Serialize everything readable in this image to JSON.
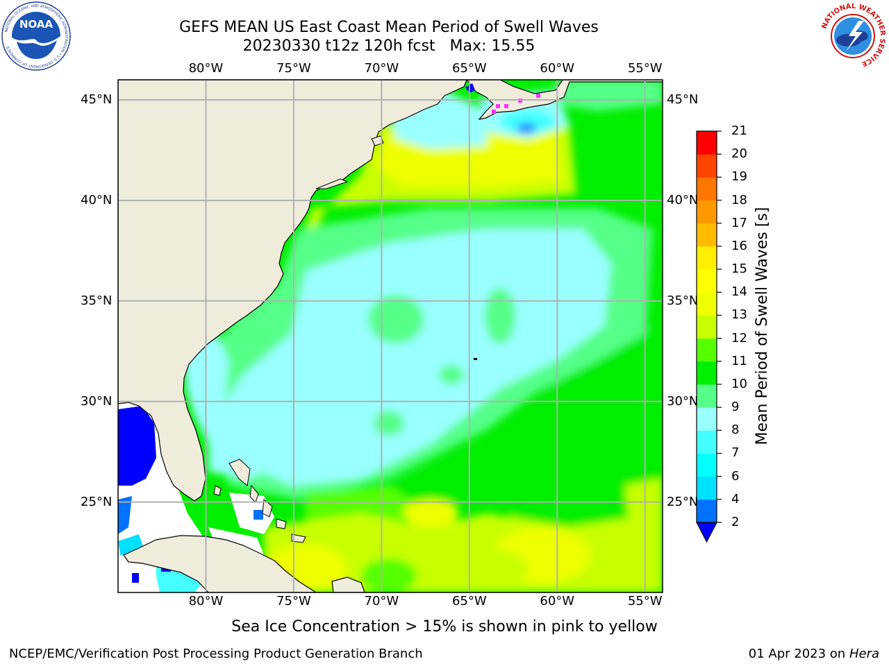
{
  "header": {
    "title_line1": "GEFS MEAN US East Coast Mean Period of Swell Waves",
    "title_line2": "20230330 t12z 120h fcst   Max: 15.55"
  },
  "logos": {
    "left": {
      "icon": "noaa-logo",
      "label": "NOAA",
      "ring_text": "NATIONAL OCEANIC AND ATMOSPHERIC ADMINISTRATION • U.S. DEPARTMENT OF COMMERCE"
    },
    "right": {
      "icon": "nws-logo",
      "ring_text": "NATIONAL WEATHER SERVICE"
    }
  },
  "footer": {
    "note": "Sea Ice Concentration > 15% is shown in pink to yellow",
    "credit_left": "NCEP/EMC/Verification Post Processing Product Generation Branch",
    "credit_right_date": "01 Apr 2023 on ",
    "credit_right_host": "Hera"
  },
  "colors": {
    "land": "#efecdc",
    "grid": "#b0b0b0",
    "undefined_water": "#ffffff",
    "sea_ice_sample": "#ff33ff"
  },
  "chart_data": {
    "type": "heatmap",
    "title": "GEFS MEAN US East Coast Mean Period of Swell Waves",
    "subtitle": "20230330 t12z 120h fcst   Max: 15.55",
    "variable": "Mean Period of Swell Waves [s]",
    "max_value": 15.55,
    "xlim": [
      -85,
      -54
    ],
    "ylim": [
      20.5,
      46
    ],
    "x_ticks": [
      -80,
      -75,
      -70,
      -65,
      -60,
      -55
    ],
    "x_tick_labels": [
      "80°W",
      "75°W",
      "70°W",
      "65°W",
      "60°W",
      "55°W"
    ],
    "y_ticks": [
      25,
      30,
      35,
      40,
      45
    ],
    "y_tick_labels": [
      "25°N",
      "30°N",
      "35°N",
      "40°N",
      "45°N"
    ],
    "grid": true,
    "colorbar": {
      "label": "Mean Period of Swell Waves [s]",
      "placement": "right",
      "extend": "min",
      "levels": [
        2,
        4,
        6,
        7,
        8,
        9,
        10,
        11,
        12,
        13,
        14,
        15,
        16,
        17,
        18,
        19,
        20,
        21
      ],
      "tick_labels": [
        "2",
        "4",
        "6",
        "7",
        "8",
        "9",
        "10",
        "11",
        "12",
        "13",
        "14",
        "15",
        "16",
        "17",
        "18",
        "19",
        "20",
        "21"
      ],
      "colors": [
        "#0072ff",
        "#00e0ff",
        "#00ffff",
        "#44ffff",
        "#99ffff",
        "#55ff88",
        "#00ee00",
        "#55ff00",
        "#c8ff00",
        "#eeff00",
        "#ffff00",
        "#ffee00",
        "#ffbb00",
        "#ff9900",
        "#ff7700",
        "#ff4400",
        "#ff0000"
      ],
      "under_color": "#0000ff"
    },
    "approximate_regions": [
      {
        "region": "Central Atlantic 27-37N, 72-60W",
        "period_s": "8-9"
      },
      {
        "region": "Gulf of Maine / Nova Scotia shelf",
        "period_s": "6-9"
      },
      {
        "region": "Offshore New England to Cape Hatteras 38-43N",
        "period_s": "12-13"
      },
      {
        "region": "Eastern edge 55-60W",
        "period_s": "10-11"
      },
      {
        "region": "Caribbean / south of Bahamas 20-24N",
        "period_s": "12-14"
      },
      {
        "region": "Gulf of Mexico west edge",
        "period_s": "2-4"
      }
    ]
  }
}
